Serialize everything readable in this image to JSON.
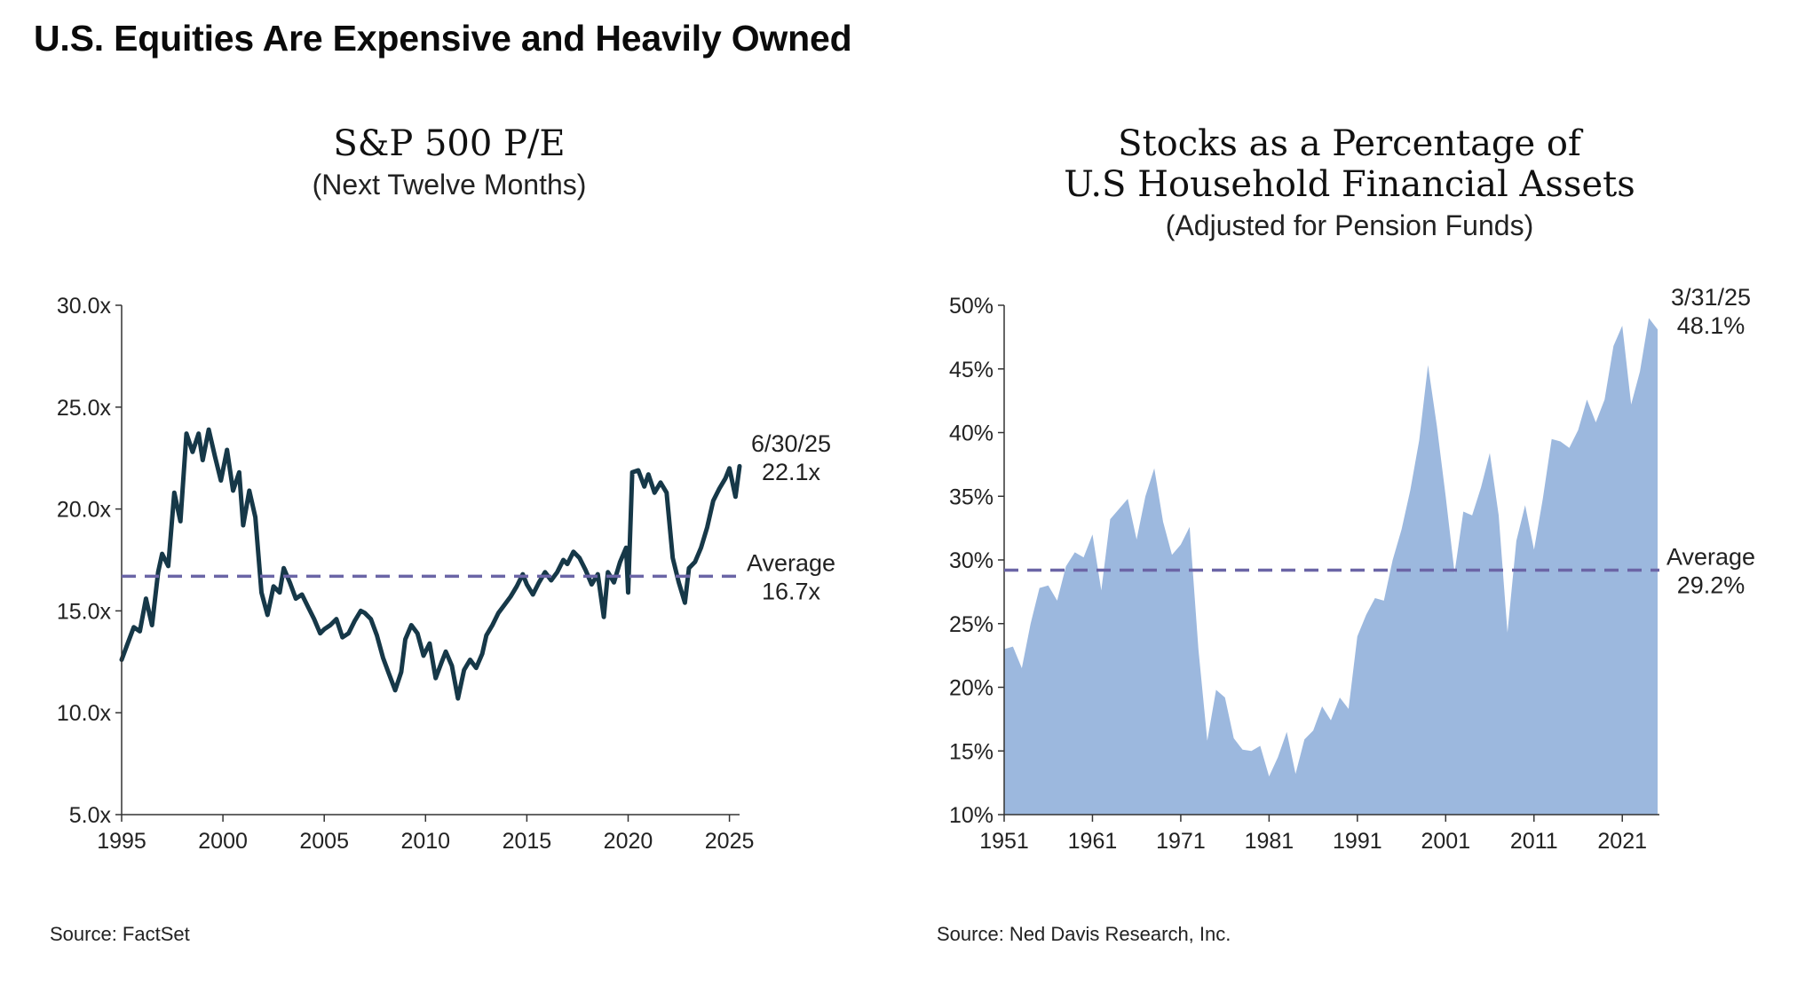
{
  "title": "U.S. Equities Are Expensive and Heavily Owned",
  "left": {
    "title": "S&P 500 P/E",
    "subtitle": "(Next Twelve Months)",
    "source": "Source: FactSet"
  },
  "right": {
    "title_line1": "Stocks as a Percentage of",
    "title_line2": "U.S Household Financial Assets",
    "subtitle": "(Adjusted for Pension Funds)",
    "source": "Source: Ned Davis Research, Inc."
  },
  "colors": {
    "line": "#163848",
    "avg": "#6b65a6",
    "area": "#9cb8de"
  },
  "chart_data": [
    {
      "type": "line",
      "title": "S&P 500 P/E",
      "subtitle": "(Next Twelve Months)",
      "xlim": [
        1995,
        2025.5
      ],
      "ylim": [
        5,
        30
      ],
      "x_ticks": [
        "1995",
        "2000",
        "2005",
        "2010",
        "2015",
        "2020",
        "2025"
      ],
      "y_ticks": [
        "5.0x",
        "10.0x",
        "15.0x",
        "20.0x",
        "25.0x",
        "30.0x"
      ],
      "average": 16.7,
      "average_label": "Average",
      "average_value_label": "16.7x",
      "last_label_date": "6/30/25",
      "last_label_value": "22.1x",
      "series": [
        {
          "name": "S&P 500 forward P/E",
          "x": [
            1995.0,
            1995.3,
            1995.6,
            1995.9,
            1996.2,
            1996.5,
            1996.8,
            1997.0,
            1997.3,
            1997.6,
            1997.9,
            1998.2,
            1998.5,
            1998.8,
            1999.0,
            1999.3,
            1999.6,
            1999.9,
            2000.2,
            2000.5,
            2000.8,
            2001.0,
            2001.3,
            2001.6,
            2001.9,
            2002.2,
            2002.5,
            2002.8,
            2003.0,
            2003.3,
            2003.6,
            2003.9,
            2004.2,
            2004.5,
            2004.8,
            2005.0,
            2005.3,
            2005.6,
            2005.9,
            2006.2,
            2006.5,
            2006.8,
            2007.0,
            2007.3,
            2007.6,
            2007.9,
            2008.2,
            2008.5,
            2008.8,
            2009.0,
            2009.3,
            2009.6,
            2009.9,
            2010.2,
            2010.5,
            2010.8,
            2011.0,
            2011.3,
            2011.6,
            2011.9,
            2012.2,
            2012.5,
            2012.8,
            2013.0,
            2013.3,
            2013.6,
            2013.9,
            2014.2,
            2014.5,
            2014.8,
            2015.0,
            2015.3,
            2015.6,
            2015.9,
            2016.2,
            2016.5,
            2016.8,
            2017.0,
            2017.3,
            2017.6,
            2017.9,
            2018.2,
            2018.5,
            2018.8,
            2019.0,
            2019.3,
            2019.6,
            2019.9,
            2020.0,
            2020.2,
            2020.5,
            2020.8,
            2021.0,
            2021.3,
            2021.6,
            2021.9,
            2022.2,
            2022.5,
            2022.8,
            2023.0,
            2023.3,
            2023.6,
            2023.9,
            2024.2,
            2024.5,
            2024.8,
            2025.0,
            2025.3,
            2025.5
          ],
          "values": [
            12.6,
            13.4,
            14.2,
            14.0,
            15.6,
            14.3,
            16.9,
            17.8,
            17.2,
            20.8,
            19.4,
            23.7,
            22.8,
            23.7,
            22.4,
            23.9,
            22.6,
            21.4,
            22.9,
            20.9,
            21.8,
            19.2,
            20.9,
            19.6,
            15.9,
            14.8,
            16.2,
            15.9,
            17.1,
            16.4,
            15.6,
            15.8,
            15.2,
            14.6,
            13.9,
            14.1,
            14.3,
            14.6,
            13.7,
            13.9,
            14.5,
            15.0,
            14.9,
            14.6,
            13.8,
            12.7,
            11.9,
            11.1,
            12.0,
            13.6,
            14.3,
            13.9,
            12.8,
            13.4,
            11.7,
            12.5,
            13.0,
            12.3,
            10.7,
            12.1,
            12.6,
            12.2,
            12.9,
            13.8,
            14.3,
            14.9,
            15.3,
            15.7,
            16.2,
            16.8,
            16.3,
            15.8,
            16.4,
            16.9,
            16.5,
            16.9,
            17.5,
            17.3,
            17.9,
            17.6,
            17.0,
            16.3,
            16.8,
            14.7,
            16.9,
            16.4,
            17.4,
            18.1,
            15.9,
            21.8,
            21.9,
            21.1,
            21.7,
            20.8,
            21.3,
            20.8,
            17.6,
            16.4,
            15.4,
            17.1,
            17.4,
            18.1,
            19.1,
            20.4,
            21.0,
            21.5,
            22.0,
            20.6,
            22.1
          ]
        }
      ]
    },
    {
      "type": "area",
      "title": "Stocks as a Percentage of U.S Household Financial Assets",
      "subtitle": "(Adjusted for Pension Funds)",
      "xlim": [
        1951,
        2025.2
      ],
      "ylim": [
        10,
        50
      ],
      "x_ticks": [
        "1951",
        "1961",
        "1971",
        "1981",
        "1991",
        "2001",
        "2011",
        "2021"
      ],
      "y_ticks": [
        "10%",
        "15%",
        "20%",
        "25%",
        "30%",
        "35%",
        "40%",
        "45%",
        "50%"
      ],
      "average": 29.2,
      "average_label": "Average",
      "average_value_label": "29.2%",
      "last_label_date": "3/31/25",
      "last_label_value": "48.1%",
      "series": [
        {
          "name": "Stocks % of household financial assets",
          "x": [
            1951,
            1952,
            1953,
            1954,
            1955,
            1956,
            1957,
            1958,
            1959,
            1960,
            1961,
            1962,
            1963,
            1964,
            1965,
            1966,
            1967,
            1968,
            1969,
            1970,
            1971,
            1972,
            1973,
            1974,
            1975,
            1976,
            1977,
            1978,
            1979,
            1980,
            1981,
            1982,
            1983,
            1984,
            1985,
            1986,
            1987,
            1988,
            1989,
            1990,
            1991,
            1992,
            1993,
            1994,
            1995,
            1996,
            1997,
            1998,
            1999,
            2000,
            2001,
            2002,
            2003,
            2004,
            2005,
            2006,
            2007,
            2008,
            2009,
            2010,
            2011,
            2012,
            2013,
            2014,
            2015,
            2016,
            2017,
            2018,
            2019,
            2020,
            2021,
            2022,
            2023,
            2024,
            2025
          ],
          "values": [
            23.0,
            23.2,
            21.5,
            25.0,
            27.8,
            28.0,
            26.8,
            29.5,
            30.6,
            30.2,
            32.0,
            27.6,
            33.2,
            34.0,
            34.8,
            31.6,
            35.0,
            37.2,
            33.0,
            30.4,
            31.2,
            32.6,
            23.0,
            15.8,
            19.8,
            19.2,
            16.0,
            15.1,
            15.0,
            15.4,
            13.0,
            14.5,
            16.5,
            13.2,
            15.9,
            16.6,
            18.5,
            17.4,
            19.2,
            18.3,
            24.0,
            25.7,
            27.0,
            26.8,
            30.0,
            32.4,
            35.5,
            39.4,
            45.3,
            40.5,
            35.0,
            29.0,
            33.8,
            33.5,
            35.7,
            38.4,
            33.5,
            24.3,
            31.5,
            34.3,
            30.8,
            34.8,
            39.5,
            39.3,
            38.8,
            40.2,
            42.6,
            40.8,
            42.6,
            46.8,
            48.4,
            42.2,
            44.8,
            49.0,
            48.1
          ]
        }
      ]
    }
  ]
}
